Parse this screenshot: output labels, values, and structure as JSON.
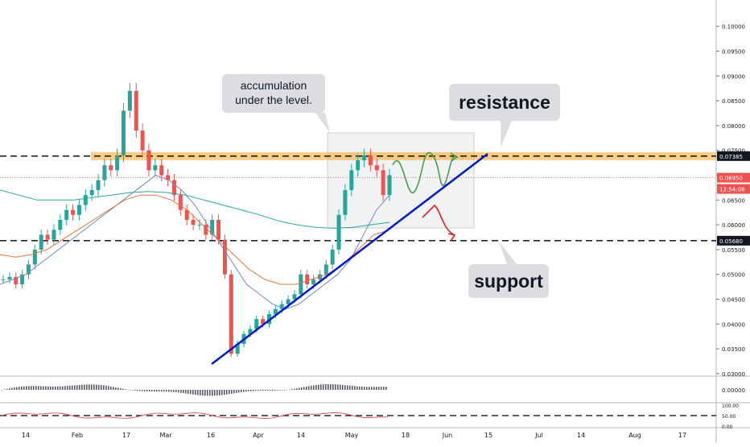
{
  "chart_data": {
    "type": "line",
    "instrument_note": "",
    "x_ticks": [
      "14",
      "Feb",
      "17",
      "Mar",
      "16",
      "Apr",
      "14",
      "May",
      "18",
      "Jun",
      "15",
      "Jul",
      "14",
      "Aug",
      "17"
    ],
    "y_ticks": [
      "0.10000",
      "0.09500",
      "0.09000",
      "0.08500",
      "0.08000",
      "0.07500",
      "0.07000",
      "0.06500",
      "0.06000",
      "0.05500",
      "0.05000",
      "0.04500",
      "0.04000",
      "0.03500",
      "0.03000"
    ],
    "ylim": [
      0.0295,
      0.1045
    ],
    "price_series_approx": [
      0.049,
      0.0495,
      0.048,
      0.05,
      0.052,
      0.055,
      0.058,
      0.057,
      0.059,
      0.061,
      0.063,
      0.062,
      0.064,
      0.066,
      0.067,
      0.069,
      0.072,
      0.071,
      0.074,
      0.083,
      0.087,
      0.079,
      0.075,
      0.071,
      0.072,
      0.07,
      0.069,
      0.066,
      0.063,
      0.061,
      0.06,
      0.06,
      0.058,
      0.061,
      0.057,
      0.05,
      0.034,
      0.036,
      0.038,
      0.039,
      0.041,
      0.04,
      0.042,
      0.043,
      0.044,
      0.045,
      0.046,
      0.05,
      0.048,
      0.049,
      0.05,
      0.052,
      0.055,
      0.062,
      0.067,
      0.071,
      0.073,
      0.074,
      0.072,
      0.071,
      0.066,
      0.07
    ],
    "series": [
      {
        "name": "",
        "color": "#6a8ec0",
        "values": [
          0.048,
          0.049,
          0.05,
          0.052,
          0.054,
          0.056,
          0.058,
          0.06,
          0.062,
          0.064,
          0.066,
          0.068,
          0.07,
          0.069,
          0.067,
          0.064,
          0.06,
          0.056,
          0.052,
          0.048,
          0.046,
          0.044,
          0.043,
          0.044,
          0.046,
          0.048,
          0.05,
          0.053,
          0.058,
          0.063,
          0.066
        ]
      },
      {
        "name": "",
        "color": "#e8743b",
        "values": [
          0.054,
          0.0535,
          0.054,
          0.055,
          0.057,
          0.059,
          0.061,
          0.063,
          0.065,
          0.066,
          0.066,
          0.065,
          0.063,
          0.06,
          0.057,
          0.054,
          0.051,
          0.049,
          0.048,
          0.048,
          0.049,
          0.05,
          0.052,
          0.055,
          0.058,
          0.059
        ]
      },
      {
        "name": "",
        "color": "#26a7a0",
        "values": [
          0.067,
          0.066,
          0.065,
          0.065,
          0.065,
          0.0655,
          0.066,
          0.0665,
          0.0667,
          0.0665,
          0.066,
          0.065,
          0.064,
          0.063,
          0.062,
          0.0608,
          0.06,
          0.0595,
          0.0593,
          0.0595,
          0.06,
          0.0605
        ]
      }
    ],
    "levels": {
      "resistance": 0.07385,
      "support": 0.0568,
      "last_price": 0.0695
    },
    "price_tags": {
      "resistance_tag": "0.07385",
      "last_tag": "0.06950",
      "countdown_tag": "12:54:08",
      "support_tag": "0.05680"
    },
    "annotations": {
      "accumulation": "accumulation\nunder the level.",
      "resistance": "resistance",
      "support": "support"
    },
    "oscillator_ticks": [
      "0.00000"
    ],
    "oscillator2_ticks": [
      "100.00",
      "50.00",
      "0.00"
    ],
    "colors": {
      "up": "#26a69a",
      "down": "#ef5350",
      "resistance_band": "#f5a623",
      "trendline": "#0018cc",
      "last_price_line": "#ef5350",
      "dash_line": "#000000",
      "projection_up": "#4a9a4a",
      "projection_down": "#e02020"
    }
  }
}
